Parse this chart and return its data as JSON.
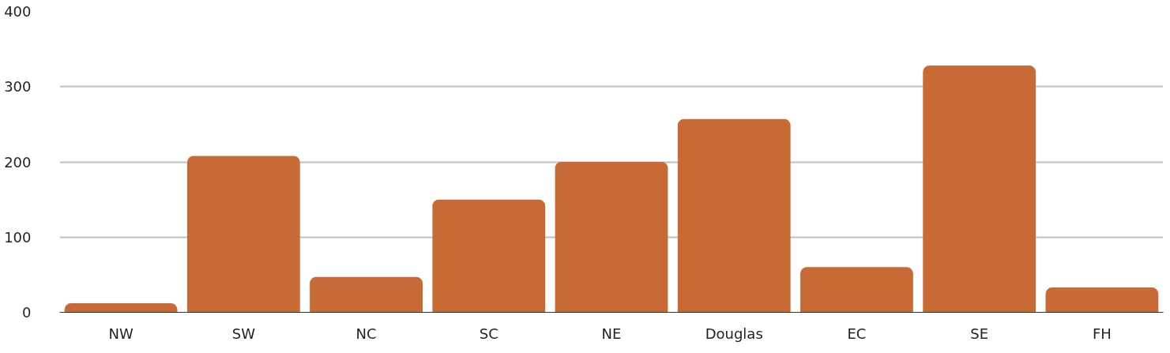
{
  "chart_data": {
    "type": "bar",
    "categories": [
      "NW",
      "SW",
      "NC",
      "SC",
      "NE",
      "Douglas",
      "EC",
      "SE",
      "FH"
    ],
    "values": [
      12,
      208,
      47,
      150,
      200,
      257,
      60,
      328,
      33
    ],
    "color": "#c86a36",
    "ylim": [
      0,
      400
    ],
    "yticks": [
      0,
      100,
      200,
      300,
      400
    ],
    "grid": "y"
  }
}
